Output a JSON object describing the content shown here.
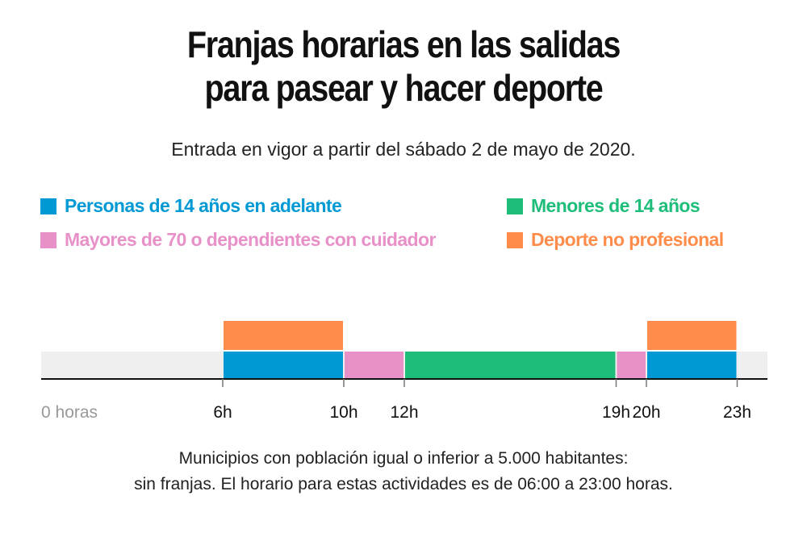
{
  "title_lines": [
    "Franjas horarias en las salidas",
    "para pasear y hacer deporte"
  ],
  "subtitle": "Entrada en vigor a partir del sábado 2 de mayo de 2020.",
  "colors": {
    "personas": "#0099d4",
    "menores": "#1ebe7a",
    "mayores": "#e890c8",
    "deporte": "#ff8c4a",
    "background_band": "#efefef",
    "axis": "#111111"
  },
  "legend": [
    {
      "key": "personas",
      "label": "Personas de 14 años en adelante"
    },
    {
      "key": "menores",
      "label": "Menores de 14 años"
    },
    {
      "key": "mayores",
      "label": "Mayores de 70 o dependientes con cuidador"
    },
    {
      "key": "deporte",
      "label": "Deporte no profesional"
    }
  ],
  "chart_data": {
    "type": "bar",
    "orientation": "horizontal-timeline",
    "x_unit": "hours",
    "xlim": [
      0,
      24
    ],
    "ticks": [
      {
        "value": 0,
        "label": "0 horas"
      },
      {
        "value": 6,
        "label": "6h"
      },
      {
        "value": 10,
        "label": "10h"
      },
      {
        "value": 12,
        "label": "12h"
      },
      {
        "value": 19,
        "label": "19h"
      },
      {
        "value": 20,
        "label": "20h"
      },
      {
        "value": 23,
        "label": "23h"
      }
    ],
    "segments": [
      {
        "series": "Personas de 14 años en adelante",
        "key": "personas",
        "row": "base",
        "start": 6,
        "end": 10
      },
      {
        "series": "Mayores de 70 o dependientes con cuidador",
        "key": "mayores",
        "row": "base",
        "start": 10,
        "end": 12
      },
      {
        "series": "Menores de 14 años",
        "key": "menores",
        "row": "base",
        "start": 12,
        "end": 19
      },
      {
        "series": "Mayores de 70 o dependientes con cuidador",
        "key": "mayores",
        "row": "base",
        "start": 19,
        "end": 20
      },
      {
        "series": "Personas de 14 años en adelante",
        "key": "personas",
        "row": "base",
        "start": 20,
        "end": 23
      },
      {
        "series": "Deporte no profesional",
        "key": "deporte",
        "row": "top",
        "start": 6,
        "end": 10
      },
      {
        "series": "Deporte no profesional",
        "key": "deporte",
        "row": "top",
        "start": 20,
        "end": 23
      }
    ],
    "grid": false,
    "legend_placement": "top"
  },
  "footer_lines": [
    "Municipios con población igual o inferior a 5.000 habitantes:",
    "sin franjas. El horario para estas actividades es de 06:00 a 23:00 horas."
  ]
}
